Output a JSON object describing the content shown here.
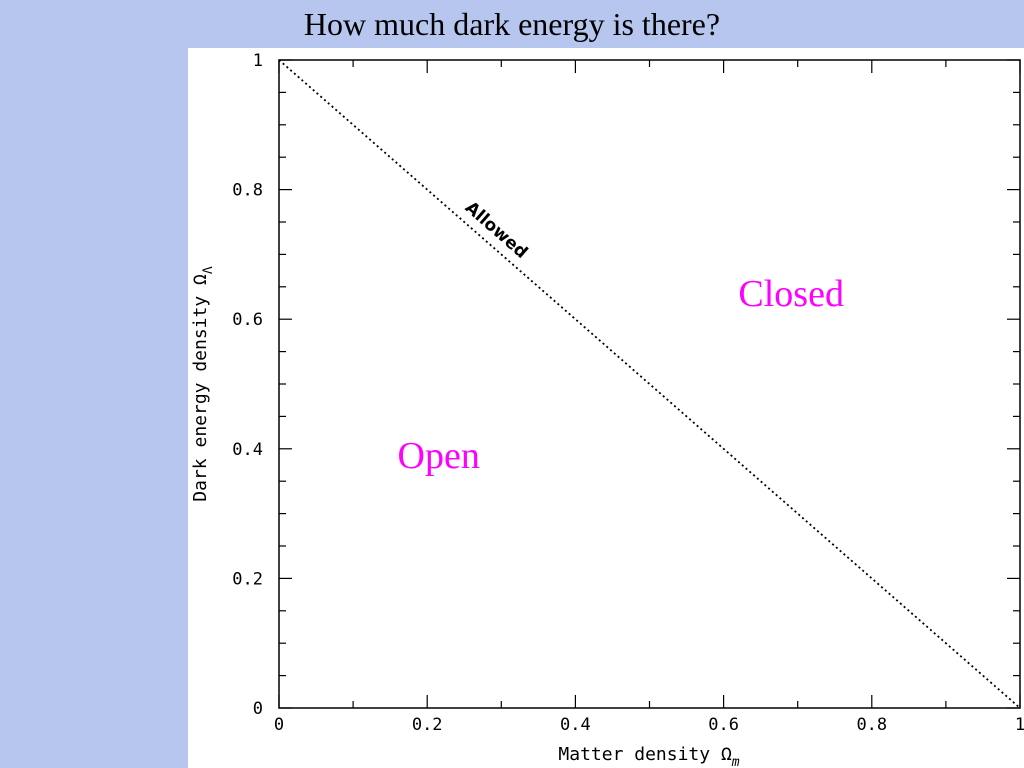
{
  "slide": {
    "title": "How much dark energy is there?"
  },
  "chart_data": {
    "type": "line",
    "xlabel": "Matter density Ω",
    "xlabel_sub": "m",
    "ylabel": "Dark energy density Ω",
    "ylabel_sub": "Λ",
    "xlim": [
      0,
      1
    ],
    "ylim": [
      0,
      1
    ],
    "xticks": [
      0,
      0.2,
      0.4,
      0.6,
      0.8,
      1
    ],
    "xtick_labels": [
      "0",
      "0.2",
      "0.4",
      "0.6",
      "0.8",
      "1"
    ],
    "yticks": [
      0,
      0.2,
      0.4,
      0.6,
      0.8,
      1
    ],
    "ytick_labels": [
      "0",
      "0.2",
      "0.4",
      "0.6",
      "0.8",
      "1"
    ],
    "minor_tick_step": 0.1,
    "grid": false,
    "series": [
      {
        "x": [
          0,
          1
        ],
        "y": [
          1,
          0
        ],
        "style": "dotted",
        "color": "#000000"
      }
    ],
    "annotations": [
      {
        "text": "Allowed",
        "x": 0.25,
        "y": 0.77,
        "style": "line-label",
        "rotate_along_line": true
      },
      {
        "text": "Closed",
        "x": 0.62,
        "y": 0.62,
        "style": "region-label",
        "color": "#ff00ff"
      },
      {
        "text": "Open",
        "x": 0.16,
        "y": 0.37,
        "style": "region-label",
        "color": "#ff00ff"
      }
    ]
  }
}
